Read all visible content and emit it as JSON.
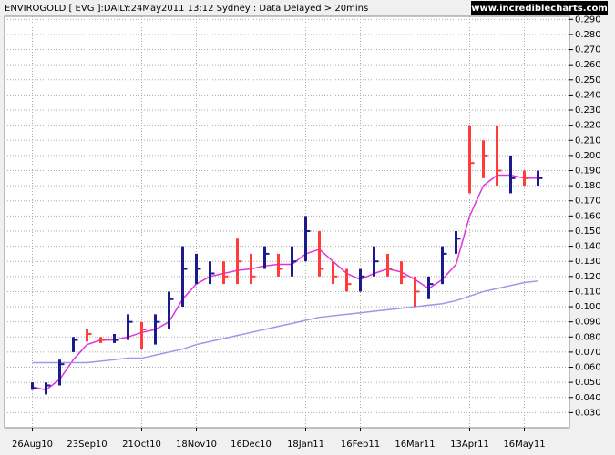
{
  "chart_data": {
    "type": "ohlc",
    "title": "ENVIROGOLD [ EVG ]:DAILY:24May2011 13:12 Sydney : Data Delayed > 20mins",
    "watermark": "www.incrediblecharts.com",
    "categories": [
      "26Aug10",
      null,
      null,
      null,
      "23Sep10",
      null,
      null,
      null,
      "21Oct10",
      null,
      null,
      null,
      "18Nov10",
      null,
      null,
      null,
      "16Dec10",
      null,
      null,
      null,
      "18Jan11",
      null,
      null,
      null,
      "16Feb11",
      null,
      null,
      null,
      "16Mar11",
      null,
      null,
      null,
      "13Apr11",
      null,
      null,
      null,
      "16May11",
      null
    ],
    "high": [
      0.05,
      0.05,
      0.065,
      0.08,
      0.085,
      0.08,
      0.082,
      0.095,
      0.09,
      0.095,
      0.11,
      0.14,
      0.135,
      0.13,
      0.13,
      0.145,
      0.135,
      0.14,
      0.135,
      0.14,
      0.16,
      0.15,
      0.13,
      0.125,
      0.125,
      0.14,
      0.135,
      0.13,
      0.12,
      0.12,
      0.14,
      0.15,
      0.22,
      0.21,
      0.22,
      0.2,
      0.19,
      0.19
    ],
    "low": [
      0.045,
      0.042,
      0.048,
      0.07,
      0.077,
      0.076,
      0.076,
      0.078,
      0.072,
      0.075,
      0.085,
      0.1,
      0.115,
      0.115,
      0.115,
      0.115,
      0.115,
      0.125,
      0.12,
      0.12,
      0.13,
      0.12,
      0.115,
      0.11,
      0.11,
      0.12,
      0.12,
      0.115,
      0.1,
      0.105,
      0.115,
      0.135,
      0.175,
      0.185,
      0.18,
      0.175,
      0.18,
      0.18
    ],
    "close": [
      0.046,
      0.048,
      0.062,
      0.078,
      0.082,
      0.078,
      0.078,
      0.09,
      0.085,
      0.09,
      0.105,
      0.125,
      0.125,
      0.122,
      0.12,
      0.13,
      0.12,
      0.135,
      0.125,
      0.13,
      0.15,
      0.125,
      0.12,
      0.115,
      0.12,
      0.13,
      0.125,
      0.12,
      0.11,
      0.115,
      0.135,
      0.145,
      0.195,
      0.2,
      0.19,
      0.185,
      0.185,
      0.185
    ],
    "colors": [
      "#1a1a8c",
      "#1a1a8c",
      "#1a1a8c",
      "#1a1a8c",
      "#ff3b3b",
      "#ff3b3b",
      "#1a1a8c",
      "#1a1a8c",
      "#ff3b3b",
      "#1a1a8c",
      "#1a1a8c",
      "#1a1a8c",
      "#1a1a8c",
      "#1a1a8c",
      "#ff3b3b",
      "#ff3b3b",
      "#ff3b3b",
      "#1a1a8c",
      "#ff3b3b",
      "#1a1a8c",
      "#1a1a8c",
      "#ff3b3b",
      "#ff3b3b",
      "#ff3b3b",
      "#1a1a8c",
      "#1a1a8c",
      "#ff3b3b",
      "#ff3b3b",
      "#ff3b3b",
      "#1a1a8c",
      "#1a1a8c",
      "#1a1a8c",
      "#ff3b3b",
      "#ff3b3b",
      "#ff3b3b",
      "#1a1a8c",
      "#ff3b3b",
      "#1a1a8c"
    ],
    "moving_averages": [
      {
        "color": "#e033e0",
        "values": [
          0.047,
          0.045,
          0.052,
          0.065,
          0.075,
          0.078,
          0.078,
          0.08,
          0.083,
          0.085,
          0.09,
          0.105,
          0.115,
          0.12,
          0.122,
          0.124,
          0.125,
          0.127,
          0.128,
          0.128,
          0.135,
          0.138,
          0.13,
          0.122,
          0.118,
          0.122,
          0.125,
          0.123,
          0.118,
          0.112,
          0.118,
          0.128,
          0.16,
          0.18,
          0.187,
          0.187,
          0.185,
          0.185
        ]
      },
      {
        "color": "#9a9ae8",
        "values": [
          0.063,
          0.063,
          0.063,
          0.063,
          0.063,
          0.064,
          0.065,
          0.066,
          0.066,
          0.068,
          0.07,
          0.072,
          0.075,
          0.077,
          0.079,
          0.081,
          0.083,
          0.085,
          0.087,
          0.089,
          0.091,
          0.093,
          0.094,
          0.095,
          0.096,
          0.097,
          0.098,
          0.099,
          0.1,
          0.101,
          0.102,
          0.104,
          0.107,
          0.11,
          0.112,
          0.114,
          0.116,
          0.117
        ]
      }
    ],
    "ylim": [
      0.02,
      0.292
    ],
    "yticks": [
      {
        "value": 0.03,
        "label": "0.030"
      },
      {
        "value": 0.04,
        "label": "0.040"
      },
      {
        "value": 0.05,
        "label": "0.050"
      },
      {
        "value": 0.06,
        "label": "0.060"
      },
      {
        "value": 0.07,
        "label": "0.070"
      },
      {
        "value": 0.08,
        "label": "0.080"
      },
      {
        "value": 0.09,
        "label": "0.090"
      },
      {
        "value": 0.1,
        "label": "0.100"
      },
      {
        "value": 0.11,
        "label": "0.110"
      },
      {
        "value": 0.12,
        "label": "0.120"
      },
      {
        "value": 0.13,
        "label": "0.130"
      },
      {
        "value": 0.14,
        "label": "0.140"
      },
      {
        "value": 0.15,
        "label": "0.150"
      },
      {
        "value": 0.16,
        "label": "0.160"
      },
      {
        "value": 0.17,
        "label": "0.170"
      },
      {
        "value": 0.18,
        "label": "0.180"
      },
      {
        "value": 0.19,
        "label": "0.190"
      },
      {
        "value": 0.2,
        "label": "0.200"
      },
      {
        "value": 0.21,
        "label": "0.210"
      },
      {
        "value": 0.22,
        "label": "0.220"
      },
      {
        "value": 0.23,
        "label": "0.230"
      },
      {
        "value": 0.24,
        "label": "0.240"
      },
      {
        "value": 0.25,
        "label": "0.250"
      },
      {
        "value": 0.26,
        "label": "0.260"
      },
      {
        "value": 0.27,
        "label": "0.270"
      },
      {
        "value": 0.28,
        "label": "0.280"
      },
      {
        "value": 0.29,
        "label": "0.290"
      }
    ],
    "grid": true
  }
}
